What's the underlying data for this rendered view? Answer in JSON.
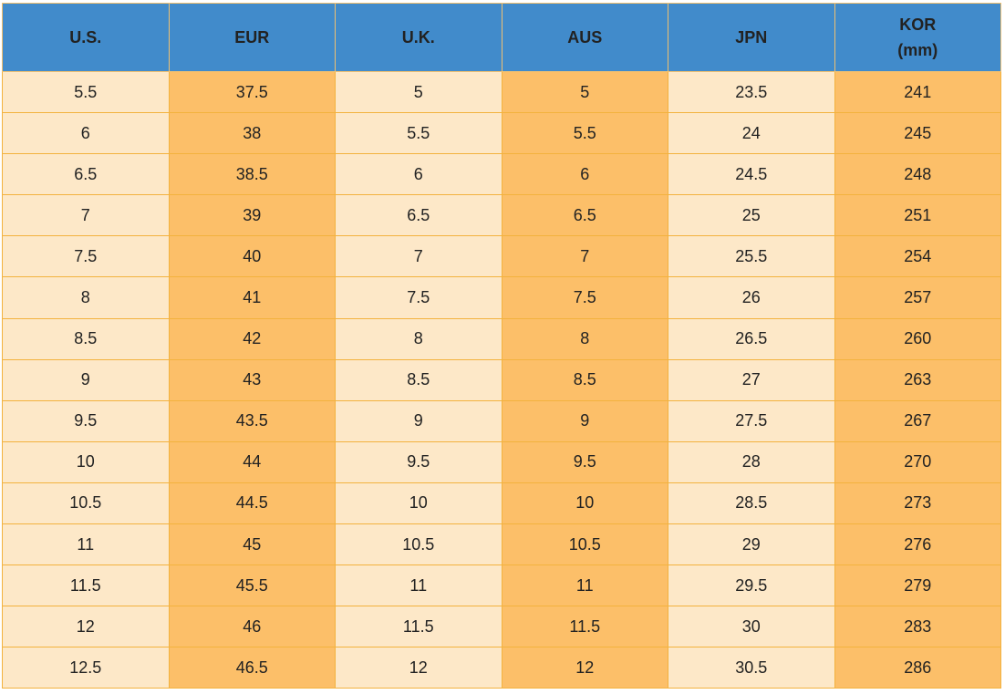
{
  "table": {
    "headers": [
      "U.S.",
      "EUR",
      "U.K.",
      "AUS",
      "JPN",
      "KOR\n(mm)"
    ],
    "rows": [
      [
        "5.5",
        "37.5",
        "5",
        "5",
        "23.5",
        "241"
      ],
      [
        "6",
        "38",
        "5.5",
        "5.5",
        "24",
        "245"
      ],
      [
        "6.5",
        "38.5",
        "6",
        "6",
        "24.5",
        "248"
      ],
      [
        "7",
        "39",
        "6.5",
        "6.5",
        "25",
        "251"
      ],
      [
        "7.5",
        "40",
        "7",
        "7",
        "25.5",
        "254"
      ],
      [
        "8",
        "41",
        "7.5",
        "7.5",
        "26",
        "257"
      ],
      [
        "8.5",
        "42",
        "8",
        "8",
        "26.5",
        "260"
      ],
      [
        "9",
        "43",
        "8.5",
        "8.5",
        "27",
        "263"
      ],
      [
        "9.5",
        "43.5",
        "9",
        "9",
        "27.5",
        "267"
      ],
      [
        "10",
        "44",
        "9.5",
        "9.5",
        "28",
        "270"
      ],
      [
        "10.5",
        "44.5",
        "10",
        "10",
        "28.5",
        "273"
      ],
      [
        "11",
        "45",
        "10.5",
        "10.5",
        "29",
        "276"
      ],
      [
        "11.5",
        "45.5",
        "11",
        "11",
        "29.5",
        "279"
      ],
      [
        "12",
        "46",
        "11.5",
        "11.5",
        "30",
        "283"
      ],
      [
        "12.5",
        "46.5",
        "12",
        "12",
        "30.5",
        "286"
      ]
    ]
  }
}
